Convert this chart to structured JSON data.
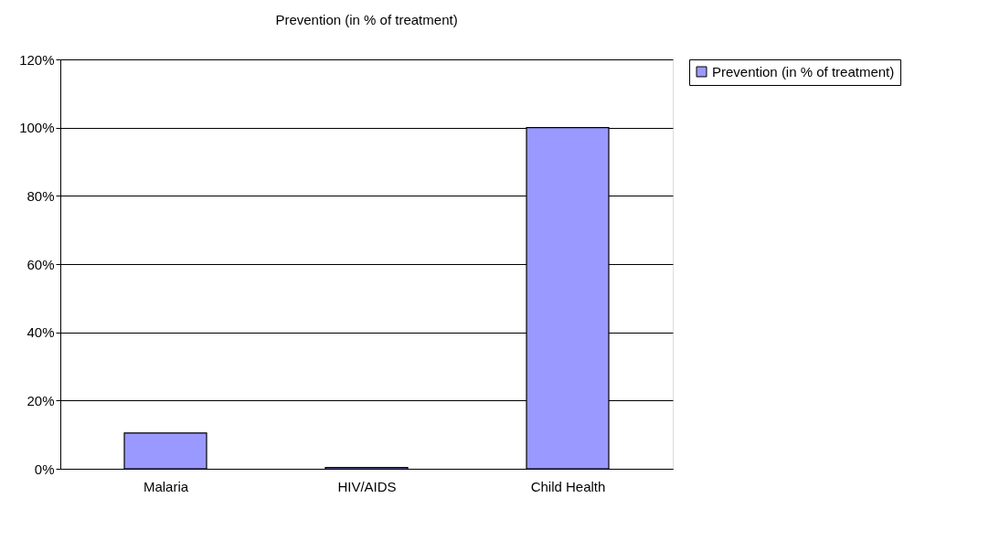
{
  "chart_data": {
    "type": "bar",
    "title": "Prevention (in % of treatment)",
    "categories": [
      "Malaria",
      "HIV/AIDS",
      "Child Health"
    ],
    "series": [
      {
        "name": "Prevention (in % of treatment)",
        "color": "#9999ff",
        "values": [
          10.5,
          0.4,
          100
        ]
      }
    ],
    "ylim": [
      0,
      120
    ],
    "yticks": [
      {
        "value": 0,
        "label": "0%"
      },
      {
        "value": 20,
        "label": "20%"
      },
      {
        "value": 40,
        "label": "40%"
      },
      {
        "value": 60,
        "label": "60%"
      },
      {
        "value": 80,
        "label": "80%"
      },
      {
        "value": 100,
        "label": "100%"
      },
      {
        "value": 120,
        "label": "120%"
      }
    ],
    "grid": "y",
    "legend": "right"
  }
}
